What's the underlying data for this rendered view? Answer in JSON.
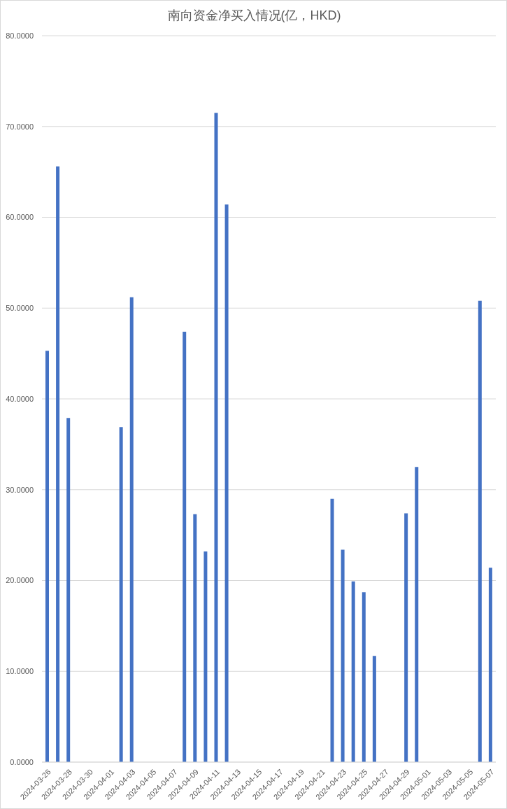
{
  "chart_data": {
    "type": "bar",
    "title": "南向资金净买入情况(亿，HKD)",
    "x": [
      "2024-03-26",
      "2024-03-27",
      "2024-03-28",
      "2024-04-02",
      "2024-04-03",
      "2024-04-08",
      "2024-04-09",
      "2024-04-10",
      "2024-04-11",
      "2024-04-12",
      "2024-04-22",
      "2024-04-23",
      "2024-04-24",
      "2024-04-25",
      "2024-04-26",
      "2024-04-29",
      "2024-04-30",
      "2024-05-06",
      "2024-05-07"
    ],
    "values": [
      45.3,
      65.6,
      37.9,
      36.9,
      51.2,
      47.4,
      27.3,
      23.2,
      71.5,
      61.4,
      29.0,
      23.4,
      19.9,
      18.7,
      11.7,
      27.4,
      32.5,
      50.8,
      21.4
    ],
    "color": "#4472c4",
    "xlim": [
      "2024-03-25T12:00",
      "2024-05-07T12:00"
    ],
    "xticks": [
      "2024-03-26",
      "2024-03-28",
      "2024-03-30",
      "2024-04-01",
      "2024-04-03",
      "2024-04-05",
      "2024-04-07",
      "2024-04-09",
      "2024-04-11",
      "2024-04-13",
      "2024-04-15",
      "2024-04-17",
      "2024-04-19",
      "2024-04-21",
      "2024-04-23",
      "2024-04-25",
      "2024-04-27",
      "2024-04-29",
      "2024-05-01",
      "2024-05-03",
      "2024-05-05",
      "2024-05-07"
    ],
    "ylim": [
      0,
      80
    ],
    "yticks": [
      {
        "value": 0,
        "label": "0.0000"
      },
      {
        "value": 10,
        "label": "10.0000"
      },
      {
        "value": 20,
        "label": "20.0000"
      },
      {
        "value": 30,
        "label": "30.0000"
      },
      {
        "value": 40,
        "label": "40.0000"
      },
      {
        "value": 50,
        "label": "50.0000"
      },
      {
        "value": 60,
        "label": "60.0000"
      },
      {
        "value": 70,
        "label": "70.0000"
      },
      {
        "value": 80,
        "label": "80.0000"
      }
    ],
    "grid": "y"
  }
}
